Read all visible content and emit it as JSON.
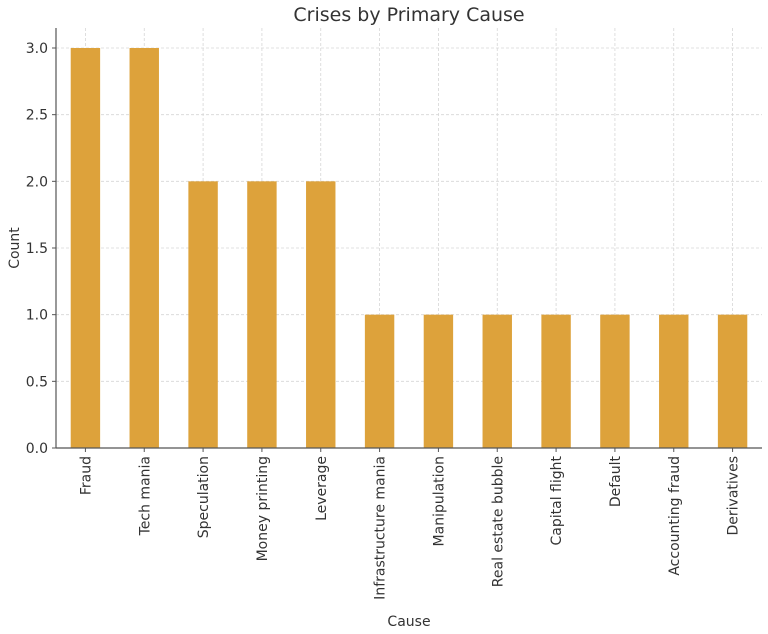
{
  "chart_data": {
    "type": "bar",
    "title": "Crises by Primary Cause",
    "xlabel": "Cause",
    "ylabel": "Count",
    "categories": [
      "Fraud",
      "Tech mania",
      "Speculation",
      "Money printing",
      "Leverage",
      "Infrastructure mania",
      "Manipulation",
      "Real estate bubble",
      "Capital flight",
      "Default",
      "Accounting fraud",
      "Derivatives"
    ],
    "values": [
      3,
      3,
      2,
      2,
      2,
      1,
      1,
      1,
      1,
      1,
      1,
      1
    ],
    "ylim": [
      0,
      3.15
    ],
    "yticks": [
      0.0,
      0.5,
      1.0,
      1.5,
      2.0,
      2.5,
      3.0
    ],
    "ytick_labels": [
      "0.0",
      "0.5",
      "1.0",
      "1.5",
      "2.0",
      "2.5",
      "3.0"
    ],
    "grid": true,
    "legend": "none",
    "bar_color": "#DDA23B"
  }
}
